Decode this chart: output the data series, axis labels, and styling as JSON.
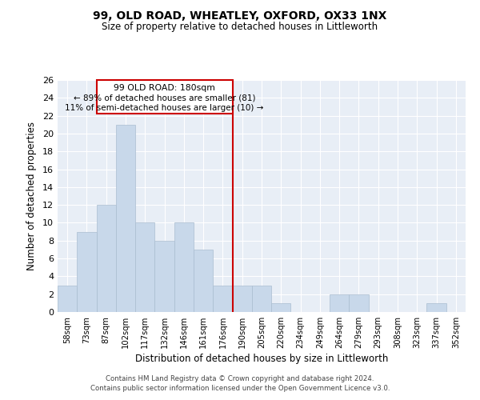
{
  "title": "99, OLD ROAD, WHEATLEY, OXFORD, OX33 1NX",
  "subtitle": "Size of property relative to detached houses in Littleworth",
  "xlabel": "Distribution of detached houses by size in Littleworth",
  "ylabel": "Number of detached properties",
  "categories": [
    "58sqm",
    "73sqm",
    "87sqm",
    "102sqm",
    "117sqm",
    "132sqm",
    "146sqm",
    "161sqm",
    "176sqm",
    "190sqm",
    "205sqm",
    "220sqm",
    "234sqm",
    "249sqm",
    "264sqm",
    "279sqm",
    "293sqm",
    "308sqm",
    "323sqm",
    "337sqm",
    "352sqm"
  ],
  "bar_values": [
    3,
    9,
    12,
    21,
    10,
    8,
    10,
    7,
    3,
    3,
    3,
    1,
    0,
    0,
    2,
    2,
    0,
    0,
    0,
    1,
    0
  ],
  "bar_color": "#c8d8ea",
  "bar_edgecolor": "#aabdd0",
  "highlight_line_index": 8,
  "highlight_color": "#cc0000",
  "annotation_title": "99 OLD ROAD: 180sqm",
  "annotation_line1": "← 89% of detached houses are smaller (81)",
  "annotation_line2": "11% of semi-detached houses are larger (10) →",
  "ylim": [
    0,
    26
  ],
  "yticks": [
    0,
    2,
    4,
    6,
    8,
    10,
    12,
    14,
    16,
    18,
    20,
    22,
    24,
    26
  ],
  "footer_line1": "Contains HM Land Registry data © Crown copyright and database right 2024.",
  "footer_line2": "Contains public sector information licensed under the Open Government Licence v3.0.",
  "bg_color": "#e8eef6",
  "fig_bg_color": "#ffffff"
}
